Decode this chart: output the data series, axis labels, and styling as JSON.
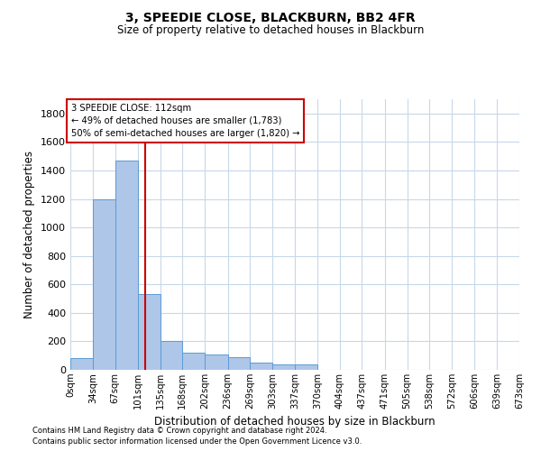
{
  "title": "3, SPEEDIE CLOSE, BLACKBURN, BB2 4FR",
  "subtitle": "Size of property relative to detached houses in Blackburn",
  "xlabel": "Distribution of detached houses by size in Blackburn",
  "ylabel": "Number of detached properties",
  "footnote1": "Contains HM Land Registry data © Crown copyright and database right 2024.",
  "footnote2": "Contains public sector information licensed under the Open Government Licence v3.0.",
  "bar_color": "#aec6e8",
  "bar_edge_color": "#5b9bd5",
  "grid_color": "#c8d8e8",
  "annotation_box_color": "#cc0000",
  "annotation_line_color": "#cc0000",
  "annotation_text_line1": "3 SPEEDIE CLOSE: 112sqm",
  "annotation_text_line2": "← 49% of detached houses are smaller (1,783)",
  "annotation_text_line3": "50% of semi-detached houses are larger (1,820) →",
  "bins": [
    0,
    34,
    67,
    101,
    135,
    168,
    202,
    236,
    269,
    303,
    337,
    370,
    404,
    437,
    471,
    505,
    538,
    572,
    606,
    639,
    673
  ],
  "bin_labels": [
    "0sqm",
    "34sqm",
    "67sqm",
    "101sqm",
    "135sqm",
    "168sqm",
    "202sqm",
    "236sqm",
    "269sqm",
    "303sqm",
    "337sqm",
    "370sqm",
    "404sqm",
    "437sqm",
    "471sqm",
    "505sqm",
    "538sqm",
    "572sqm",
    "606sqm",
    "639sqm",
    "673sqm"
  ],
  "counts": [
    80,
    1200,
    1470,
    530,
    200,
    120,
    110,
    90,
    50,
    35,
    35,
    0,
    0,
    0,
    0,
    0,
    0,
    0,
    0,
    0
  ],
  "ylim": [
    0,
    1900
  ],
  "yticks": [
    0,
    200,
    400,
    600,
    800,
    1000,
    1200,
    1400,
    1600,
    1800
  ],
  "vline_x": 112,
  "figsize": [
    6.0,
    5.0
  ],
  "dpi": 100
}
